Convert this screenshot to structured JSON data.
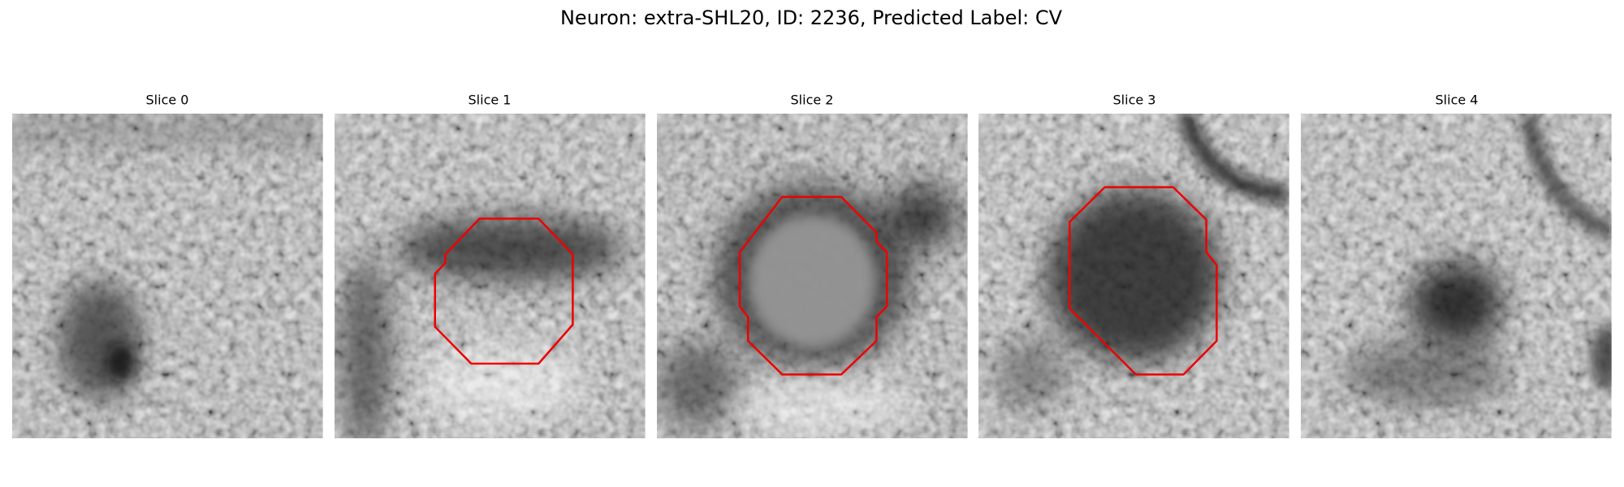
{
  "title": "Neuron: extra-SHL20, ID: 2236, Predicted Label: CV",
  "slices": [
    {
      "title": "Slice 0"
    },
    {
      "title": "Slice 1"
    },
    {
      "title": "Slice 2"
    },
    {
      "title": "Slice 3"
    },
    {
      "title": "Slice 4"
    }
  ]
}
